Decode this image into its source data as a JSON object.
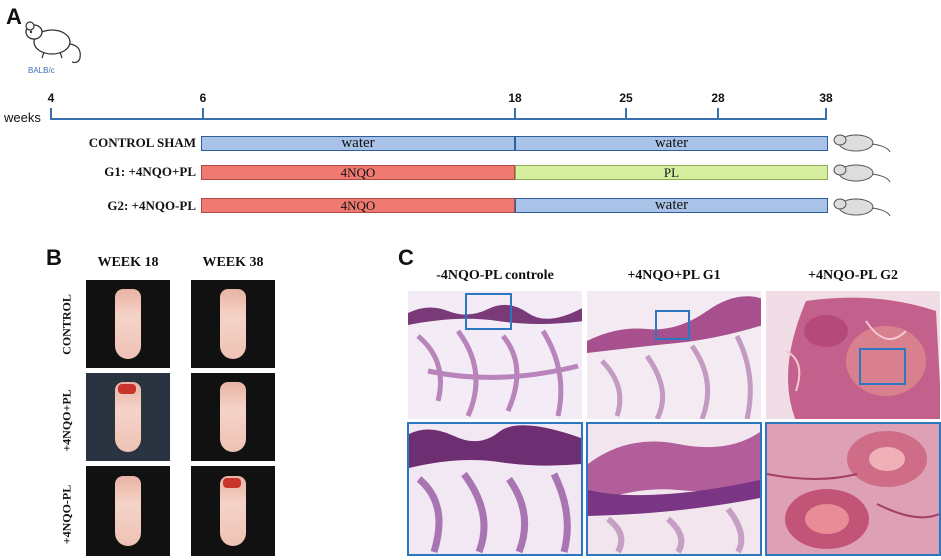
{
  "panel_a": {
    "letter": "A",
    "mouse_label": "BALB/c",
    "axis_label": "weeks",
    "ticks": [
      "4",
      "6",
      "18",
      "25",
      "28",
      "38"
    ],
    "groups": [
      {
        "label": "CONTROL SHAM",
        "phase1": "water",
        "phase2": "water"
      },
      {
        "label": "G1: +4NQO+PL",
        "phase1": "4NQO",
        "phase2": "PL"
      },
      {
        "label": "G2: +4NQO-PL",
        "phase1": "4NQO",
        "phase2": "water"
      }
    ]
  },
  "panel_b": {
    "letter": "B",
    "columns": [
      "WEEK 18",
      "WEEK 38"
    ],
    "rows": [
      "CONTROL",
      "+4NQO+PL",
      "+4NQO-PL"
    ]
  },
  "panel_c": {
    "letter": "C",
    "columns": [
      "-4NQO-PL controle",
      "+4NQO+PL G1",
      "+4NQO-PL G2"
    ]
  },
  "colors": {
    "water": "#a8c2e8",
    "nqo": "#ef7a72",
    "pl": "#d6eea0",
    "timeline": "#3a6fb0",
    "highlight": "#2b78c0"
  }
}
